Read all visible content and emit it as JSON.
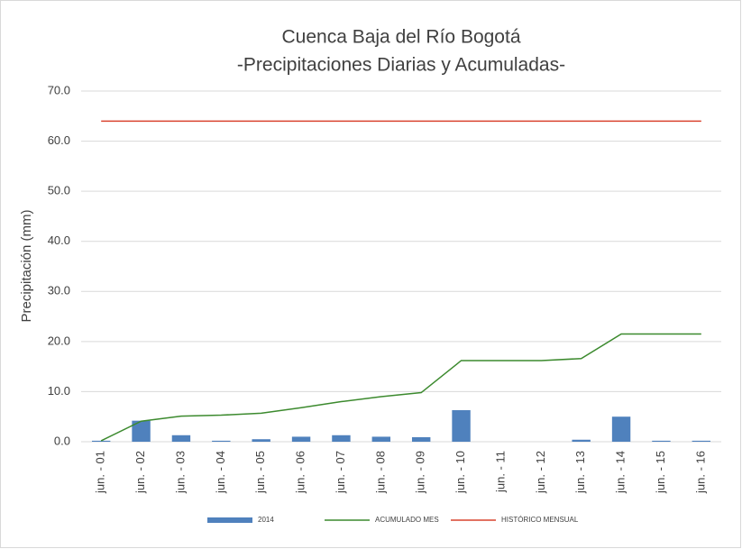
{
  "chart_data": {
    "type": "bar",
    "title": "Cuenca Baja del Río Bogotá",
    "subtitle": "-Precipitaciones Diarias y Acumuladas-",
    "y_label": "Precipitación (mm)",
    "categories": [
      "jun. - 01",
      "jun. - 02",
      "jun. - 03",
      "jun. - 04",
      "jun. - 05",
      "jun. - 06",
      "jun. - 07",
      "jun. - 08",
      "jun. - 09",
      "jun. - 10",
      "jun. - 11",
      "jun. - 12",
      "jun. - 13",
      "jun. - 14",
      "jun. - 15",
      "jun. - 16"
    ],
    "series": [
      {
        "name": "2014",
        "type": "bar",
        "color": "#4f81bd",
        "values": [
          0.2,
          4.2,
          1.3,
          0.2,
          0.5,
          1.0,
          1.3,
          1.0,
          0.9,
          6.3,
          0,
          0,
          0.4,
          5.0,
          0.2,
          0.2
        ]
      },
      {
        "name": "ACUMULADO MES",
        "type": "line",
        "color": "#3c8a2e",
        "values": [
          0.2,
          4.1,
          5.1,
          5.3,
          5.7,
          6.8,
          8.0,
          9.0,
          9.8,
          16.2,
          16.2,
          16.2,
          16.6,
          21.5,
          21.5,
          21.5
        ]
      },
      {
        "name": "HISTÓRICO MENSUAL",
        "type": "line",
        "color": "#d9432f",
        "values": [
          64.0,
          64.0,
          64.0,
          64.0,
          64.0,
          64.0,
          64.0,
          64.0,
          64.0,
          64.0,
          64.0,
          64.0,
          64.0,
          64.0,
          64.0,
          64.0
        ]
      }
    ],
    "ylim": [
      0,
      70
    ],
    "yticks": [
      {
        "value": 0,
        "label": "0.0"
      },
      {
        "value": 10,
        "label": "10.0"
      },
      {
        "value": 20,
        "label": "20.0"
      },
      {
        "value": 30,
        "label": "30.0"
      },
      {
        "value": 40,
        "label": "40.0"
      },
      {
        "value": 50,
        "label": "50.0"
      },
      {
        "value": 60,
        "label": "60.0"
      },
      {
        "value": 70,
        "label": "70.0"
      }
    ],
    "grid": true
  }
}
